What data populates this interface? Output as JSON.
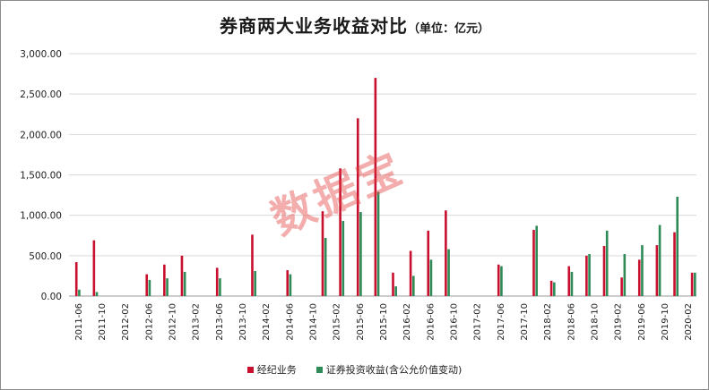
{
  "title": "券商两大业务收益对比",
  "unit": "（单位：亿元）",
  "watermark_text": "数据宝",
  "colors": {
    "brokerage": "#c8102e",
    "investment": "#2e8b57"
  },
  "chart_data": {
    "type": "bar",
    "ylim": [
      0,
      3000
    ],
    "yticks": [
      "0.00",
      "500.00",
      "1,000.00",
      "1,500.00",
      "2,000.00",
      "2,500.00",
      "3,000.00"
    ],
    "ytick_values": [
      0,
      500,
      1000,
      1500,
      2000,
      2500,
      3000
    ],
    "grid": true,
    "legend_position": "bottom",
    "categories": [
      "2011-06",
      "2011-10",
      "2012-02",
      "2012-06",
      "2012-10",
      "2013-02",
      "2013-06",
      "2013-10",
      "2014-02",
      "2014-06",
      "2014-10",
      "2015-02",
      "2015-06",
      "2015-10",
      "2016-02",
      "2016-06",
      "2016-10",
      "2017-02",
      "2017-06",
      "2017-10",
      "2018-02",
      "2018-06",
      "2018-10",
      "2019-02",
      "2019-06",
      "2019-10",
      "2020-02"
    ],
    "x": [
      "2011-06",
      "2011-09",
      "2011-12",
      "2012-03",
      "2012-06",
      "2012-09",
      "2012-12",
      "2013-06",
      "2013-12",
      "2014-06",
      "2014-12",
      "2015-03",
      "2015-06",
      "2015-09",
      "2015-12",
      "2016-03",
      "2016-06",
      "2016-09",
      "2016-12",
      "2017-06",
      "2017-12",
      "2018-03",
      "2018-06",
      "2018-09",
      "2018-12",
      "2019-03",
      "2019-06",
      "2019-09",
      "2019-12",
      "2020-03"
    ],
    "series": [
      {
        "name": "经纪业务",
        "values": [
          420,
          690,
          0,
          0,
          270,
          390,
          500,
          350,
          760,
          320,
          1050,
          1580,
          2200,
          2700,
          290,
          560,
          810,
          1060,
          0,
          390,
          820,
          190,
          370,
          500,
          620,
          230,
          450,
          630,
          790,
          290
        ]
      },
      {
        "name": "证券投资收益(含公允价值变动)",
        "values": [
          80,
          50,
          0,
          0,
          200,
          220,
          300,
          220,
          310,
          270,
          720,
          930,
          1040,
          1290,
          120,
          250,
          450,
          580,
          0,
          370,
          870,
          170,
          300,
          520,
          810,
          520,
          630,
          880,
          1230,
          290
        ]
      }
    ]
  }
}
